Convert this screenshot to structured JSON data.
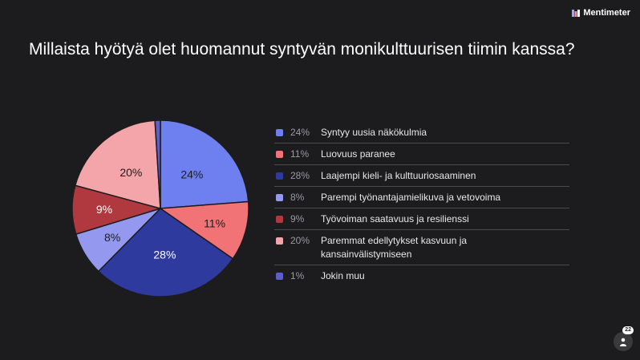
{
  "brand": {
    "name": "Mentimeter",
    "icon": "mentimeter-logo-icon"
  },
  "question": "Millaista hyötyä olet huomannut syntyvän monikulttuurisen tiimin kanssa?",
  "participants": {
    "count": "22",
    "icon": "person-icon"
  },
  "chart_data": {
    "type": "pie",
    "title": "",
    "series": [
      {
        "name": "Syntyy uusia näkökulmia",
        "value": 24,
        "pct_label": "24%",
        "color": "#6e7ff0"
      },
      {
        "name": "Luovuus paranee",
        "value": 11,
        "pct_label": "11%",
        "color": "#f27375"
      },
      {
        "name": "Laajempi kieli- ja kulttuuriosaaminen",
        "value": 28,
        "pct_label": "28%",
        "color": "#2f3a9e"
      },
      {
        "name": "Parempi työnantajamielikuva ja vetovoima",
        "value": 8,
        "pct_label": "8%",
        "color": "#9499ef"
      },
      {
        "name": "Työvoiman saatavuus ja resilienssi",
        "value": 9,
        "pct_label": "9%",
        "color": "#b0393f"
      },
      {
        "name": "Paremmat edellytykset kasvuun ja kansainvälistymiseen",
        "value": 20,
        "pct_label": "20%",
        "color": "#f4a5a9"
      },
      {
        "name": "Jokin muu",
        "value": 1,
        "pct_label": "1%",
        "color": "#5b5fc7"
      }
    ],
    "legend_position": "right"
  }
}
